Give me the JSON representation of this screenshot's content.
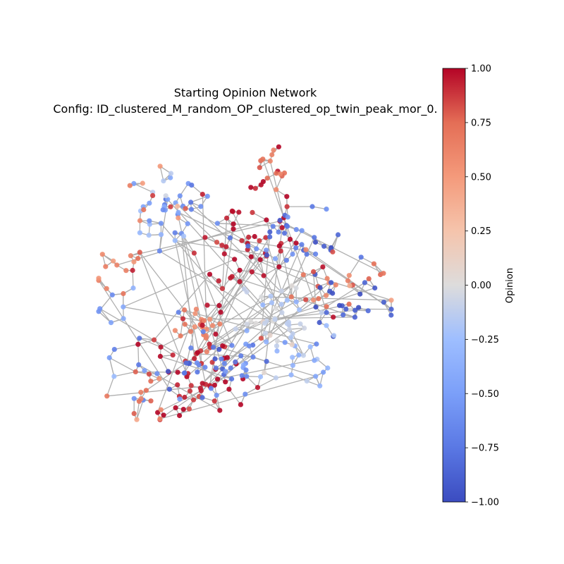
{
  "figure": {
    "title": "Starting Opinion Network",
    "subtitle": "Config: ID_clustered_M_random_OP_clustered_op_twin_peak_mor_0."
  },
  "colorbar": {
    "label": "Opinion",
    "colormap": "coolwarm",
    "min": -1.0,
    "max": 1.0,
    "ticks": [
      "1.00",
      "0.75",
      "0.50",
      "0.25",
      "0.00",
      "−0.25",
      "−0.50",
      "−0.75",
      "−1.00"
    ],
    "tick_values": [
      1.0,
      0.75,
      0.5,
      0.25,
      0.0,
      -0.25,
      -0.5,
      -0.75,
      -1.0
    ]
  },
  "colors": {
    "edge": "#b0b0b0",
    "low": "#3b4cc0",
    "mid": "#dddddd",
    "high": "#b40426"
  }
}
